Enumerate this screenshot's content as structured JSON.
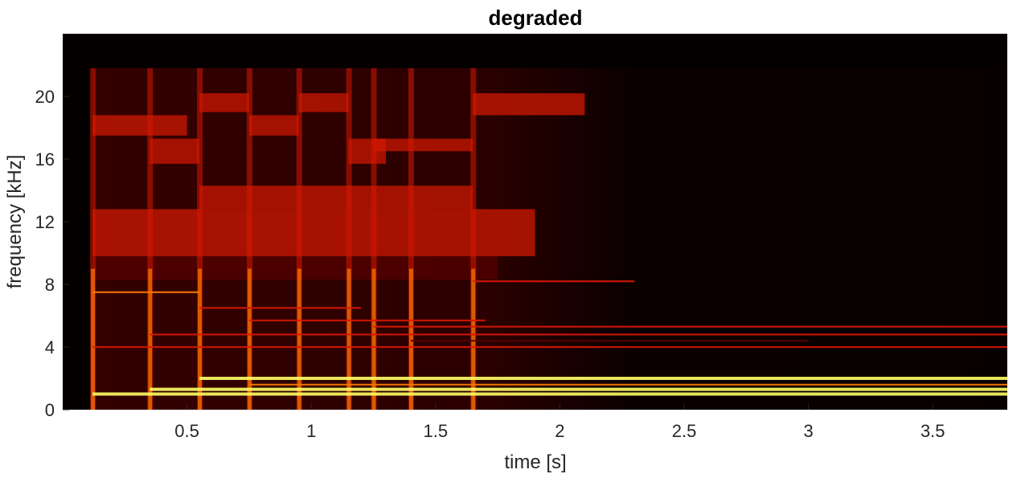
{
  "chart_data": {
    "type": "heatmap",
    "title": "degraded",
    "xlabel": "time [s]",
    "ylabel": "frequency [kHz]",
    "xlim": [
      0.0,
      3.8
    ],
    "ylim": [
      0,
      24
    ],
    "x_ticks": [
      0.5,
      1,
      1.5,
      2,
      2.5,
      3,
      3.5
    ],
    "x_tick_labels": [
      "0.5",
      "1",
      "1.5",
      "2",
      "2.5",
      "3",
      "3.5"
    ],
    "y_ticks": [
      0,
      4,
      8,
      12,
      16,
      20
    ],
    "y_tick_labels": [
      "0",
      "4",
      "8",
      "12",
      "16",
      "20"
    ],
    "grid": false,
    "colormap": "hot",
    "colors": {
      "background": "#050000",
      "low": "#5a0000",
      "mid": "#d41800",
      "high": "#ff7a00",
      "peak": "#ffff66"
    },
    "note_onsets": [
      {
        "t": 0.12,
        "partials_khz": [
          1.0,
          4.0,
          7.5
        ]
      },
      {
        "t": 0.35,
        "partials_khz": [
          1.3,
          4.8
        ]
      },
      {
        "t": 0.55,
        "partials_khz": [
          2.0,
          6.5
        ]
      },
      {
        "t": 0.75,
        "partials_khz": [
          1.6,
          5.7
        ]
      },
      {
        "t": 0.95,
        "partials_khz": [
          2.0,
          6.5
        ]
      },
      {
        "t": 1.15,
        "partials_khz": [
          1.3,
          4.7
        ]
      },
      {
        "t": 1.25,
        "partials_khz": [
          1.5,
          5.3
        ]
      },
      {
        "t": 1.4,
        "partials_khz": [
          1.1,
          4.4
        ]
      },
      {
        "t": 1.65,
        "partials_khz": [
          1.0,
          8.2
        ]
      }
    ],
    "sustained_partials": [
      {
        "f_khz": 1.0,
        "t_start": 0.12,
        "t_end": 3.8,
        "strength": 1.0
      },
      {
        "f_khz": 1.3,
        "t_start": 0.35,
        "t_end": 3.8,
        "strength": 0.95
      },
      {
        "f_khz": 2.0,
        "t_start": 0.55,
        "t_end": 3.8,
        "strength": 0.95
      },
      {
        "f_khz": 1.6,
        "t_start": 0.75,
        "t_end": 3.8,
        "strength": 0.8
      },
      {
        "f_khz": 4.0,
        "t_start": 0.12,
        "t_end": 3.8,
        "strength": 0.55
      },
      {
        "f_khz": 4.8,
        "t_start": 0.35,
        "t_end": 3.8,
        "strength": 0.55
      },
      {
        "f_khz": 5.3,
        "t_start": 1.25,
        "t_end": 3.8,
        "strength": 0.6
      },
      {
        "f_khz": 4.4,
        "t_start": 1.4,
        "t_end": 3.0,
        "strength": 0.45
      },
      {
        "f_khz": 5.7,
        "t_start": 0.75,
        "t_end": 1.7,
        "strength": 0.55
      },
      {
        "f_khz": 6.5,
        "t_start": 0.55,
        "t_end": 1.2,
        "strength": 0.6
      },
      {
        "f_khz": 7.5,
        "t_start": 0.12,
        "t_end": 0.55,
        "strength": 0.75
      },
      {
        "f_khz": 8.2,
        "t_start": 1.65,
        "t_end": 2.3,
        "strength": 0.6
      }
    ],
    "high_bands": [
      {
        "f_lo": 17.5,
        "f_hi": 18.8,
        "t_start": 0.12,
        "t_end": 0.5,
        "strength": 0.6
      },
      {
        "f_lo": 15.7,
        "f_hi": 17.3,
        "t_start": 0.35,
        "t_end": 0.55,
        "strength": 0.55
      },
      {
        "f_lo": 19.0,
        "f_hi": 20.2,
        "t_start": 0.55,
        "t_end": 0.75,
        "strength": 0.55
      },
      {
        "f_lo": 17.5,
        "f_hi": 18.8,
        "t_start": 0.75,
        "t_end": 0.95,
        "strength": 0.5
      },
      {
        "f_lo": 19.0,
        "f_hi": 20.2,
        "t_start": 0.95,
        "t_end": 1.15,
        "strength": 0.5
      },
      {
        "f_lo": 15.7,
        "f_hi": 17.3,
        "t_start": 1.15,
        "t_end": 1.3,
        "strength": 0.55
      },
      {
        "f_lo": 16.5,
        "f_hi": 17.3,
        "t_start": 1.25,
        "t_end": 1.65,
        "strength": 0.55
      },
      {
        "f_lo": 18.8,
        "f_hi": 20.2,
        "t_start": 1.65,
        "t_end": 2.1,
        "strength": 0.6
      },
      {
        "f_lo": 12.8,
        "f_hi": 14.3,
        "t_start": 0.55,
        "t_end": 1.65,
        "strength": 0.55
      },
      {
        "f_lo": 9.8,
        "f_hi": 12.8,
        "t_start": 0.12,
        "t_end": 1.9,
        "strength": 0.6
      },
      {
        "f_lo": 8.3,
        "f_hi": 9.8,
        "t_start": 0.12,
        "t_end": 1.75,
        "strength": 0.45
      }
    ],
    "noise_floor_top_khz": 21.8,
    "decay_start_s": 1.7,
    "decay_end_s": 2.3
  }
}
